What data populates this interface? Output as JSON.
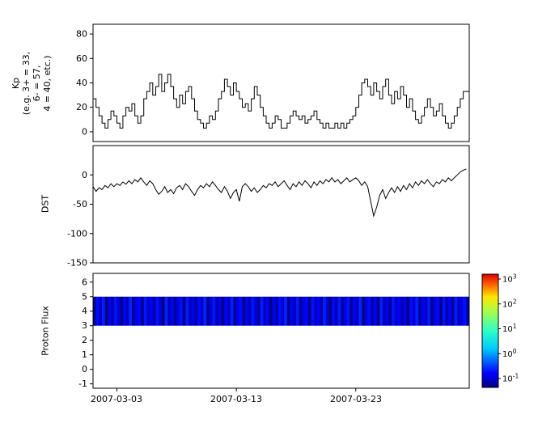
{
  "figure": {
    "background": "#ffffff",
    "line_color": "#000000",
    "x_axis": {
      "range_days": [
        0,
        31.5
      ],
      "tick_days": [
        2,
        12,
        22
      ],
      "tick_labels": [
        "2007-03-03",
        "2007-03-13",
        "2007-03-23"
      ]
    },
    "colorbar": {
      "scale": "log",
      "tick_exponents": [
        3,
        2,
        1,
        0,
        -1
      ],
      "colormap_positions": [
        0,
        0.125,
        0.34,
        0.5,
        0.66,
        0.8,
        0.91,
        1
      ],
      "colormap_colors": [
        "#000080",
        "#0000ff",
        "#00c8ff",
        "#30ffc8",
        "#a0ff50",
        "#ffe600",
        "#ff6000",
        "#dd0000"
      ]
    }
  },
  "chart_data": [
    {
      "type": "line",
      "name": "Kp",
      "step": true,
      "ylabel_lines": [
        "Kp",
        "(e.g. 3+ = 33,",
        "6- = 57,",
        "4 = 40, etc.)"
      ],
      "yticks": [
        0,
        20,
        40,
        60,
        80
      ],
      "ylim": [
        -8,
        88
      ],
      "x_start_day": 0,
      "x_step_days": 0.25,
      "values": [
        27,
        20,
        13,
        7,
        3,
        10,
        17,
        13,
        7,
        3,
        13,
        20,
        17,
        23,
        13,
        7,
        13,
        27,
        33,
        40,
        30,
        37,
        47,
        33,
        40,
        47,
        37,
        27,
        20,
        30,
        23,
        33,
        37,
        27,
        17,
        10,
        7,
        3,
        7,
        13,
        10,
        17,
        27,
        33,
        43,
        37,
        30,
        40,
        33,
        27,
        20,
        23,
        17,
        27,
        37,
        30,
        20,
        13,
        7,
        3,
        7,
        13,
        10,
        3,
        3,
        7,
        13,
        17,
        13,
        10,
        13,
        7,
        10,
        13,
        17,
        10,
        7,
        3,
        7,
        3,
        3,
        7,
        3,
        7,
        3,
        7,
        10,
        13,
        20,
        30,
        40,
        43,
        37,
        30,
        40,
        33,
        27,
        37,
        43,
        30,
        23,
        33,
        27,
        37,
        30,
        20,
        27,
        17,
        10,
        7,
        13,
        20,
        27,
        20,
        13,
        17,
        23,
        13,
        7,
        3,
        7,
        13,
        20,
        27,
        33,
        33
      ]
    },
    {
      "type": "line",
      "name": "DST",
      "step": false,
      "ylabel": "DST",
      "yticks": [
        -150,
        -100,
        -50,
        0
      ],
      "ylim": [
        -150,
        50
      ],
      "x_start_day": 0,
      "x_step_days": 0.25,
      "values": [
        -20,
        -28,
        -22,
        -25,
        -18,
        -22,
        -15,
        -20,
        -15,
        -18,
        -12,
        -16,
        -10,
        -15,
        -8,
        -12,
        -5,
        -12,
        -18,
        -10,
        -15,
        -25,
        -33,
        -28,
        -20,
        -30,
        -25,
        -32,
        -22,
        -18,
        -25,
        -15,
        -20,
        -28,
        -35,
        -25,
        -18,
        -22,
        -15,
        -20,
        -12,
        -18,
        -25,
        -30,
        -20,
        -28,
        -40,
        -30,
        -25,
        -45,
        -20,
        -15,
        -20,
        -28,
        -22,
        -30,
        -25,
        -18,
        -22,
        -15,
        -18,
        -12,
        -20,
        -15,
        -10,
        -18,
        -25,
        -15,
        -20,
        -12,
        -18,
        -10,
        -15,
        -22,
        -12,
        -18,
        -10,
        -15,
        -8,
        -12,
        -5,
        -12,
        -8,
        -15,
        -10,
        -5,
        -12,
        -8,
        -5,
        -10,
        -18,
        -12,
        -20,
        -45,
        -70,
        -55,
        -35,
        -25,
        -40,
        -30,
        -22,
        -30,
        -20,
        -28,
        -18,
        -25,
        -15,
        -22,
        -12,
        -18,
        -10,
        -15,
        -8,
        -15,
        -20,
        -12,
        -15,
        -8,
        -12,
        -5,
        -10,
        -5,
        0,
        5,
        8,
        10
      ]
    },
    {
      "type": "heatmap",
      "name": "Proton Flux",
      "ylabel": "Proton Flux",
      "yticks": [
        -1,
        0,
        1,
        2,
        3,
        4,
        5,
        6
      ],
      "ylim": [
        -1.3,
        6.6
      ],
      "band_y_range": [
        3,
        5
      ],
      "color_limits_log10": [
        -1,
        3
      ],
      "x_start_day": 0,
      "x_step_days": 0.25,
      "values": [
        0.12,
        0.35,
        0.18,
        0.42,
        0.1,
        0.28,
        0.15,
        0.38,
        0.22,
        0.09,
        0.31,
        0.17,
        0.45,
        0.12,
        0.26,
        0.33,
        0.11,
        0.4,
        0.19,
        0.29,
        0.14,
        0.37,
        0.21,
        0.08,
        0.44,
        0.16,
        0.3,
        0.12,
        0.25,
        0.36,
        0.1,
        0.41,
        0.18,
        0.27,
        0.13,
        0.34,
        0.2,
        0.46,
        0.11,
        0.24,
        0.39,
        0.15,
        0.28,
        0.09,
        0.32,
        0.17,
        0.43,
        0.12,
        0.26,
        0.35,
        0.1,
        0.29,
        0.16,
        0.38,
        0.21,
        0.13,
        0.42,
        0.18,
        0.31,
        0.09,
        0.27,
        0.14,
        0.36,
        0.22,
        0.45,
        0.11,
        0.3,
        0.17,
        0.4,
        0.12,
        0.25,
        0.33,
        0.1,
        0.37,
        0.19,
        0.28,
        0.15,
        0.44,
        0.21,
        0.08,
        0.34,
        0.16,
        0.41,
        0.13,
        0.26,
        0.38,
        0.11,
        0.29,
        0.18,
        0.46,
        0.1,
        0.24,
        0.35,
        0.14,
        0.31,
        0.09,
        0.43,
        0.17,
        0.27,
        0.12,
        0.39,
        0.2,
        0.32,
        0.15,
        0.28,
        0.1,
        0.36,
        0.22,
        0.44,
        0.13,
        0.3,
        0.18,
        0.41,
        0.11,
        0.26,
        0.34,
        0.09,
        0.38,
        0.16,
        0.29,
        0.12,
        0.42,
        0.19,
        0.25,
        0.37,
        0.14
      ]
    }
  ]
}
